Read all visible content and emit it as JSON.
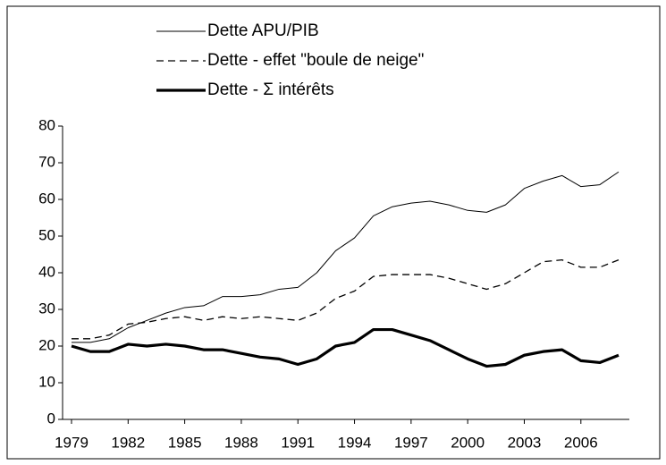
{
  "chart_data": {
    "type": "line",
    "x": [
      1979,
      1980,
      1981,
      1982,
      1983,
      1984,
      1985,
      1986,
      1987,
      1988,
      1989,
      1990,
      1991,
      1992,
      1993,
      1994,
      1995,
      1996,
      1997,
      1998,
      1999,
      2000,
      2001,
      2002,
      2003,
      2004,
      2005,
      2006,
      2007,
      2008
    ],
    "xlim": [
      1979,
      2008
    ],
    "xticks": [
      1979,
      1982,
      1985,
      1988,
      1991,
      1994,
      1997,
      2000,
      2003,
      2006
    ],
    "ylim": [
      0,
      80
    ],
    "yticks": [
      0,
      10,
      20,
      30,
      40,
      50,
      60,
      70,
      80
    ],
    "series": [
      {
        "name": "Dette APU/PIB",
        "color": "#000000",
        "line_width": 1,
        "dashed": false,
        "values": [
          21,
          21,
          22,
          25,
          27,
          29,
          30.5,
          31,
          33.5,
          33.5,
          34,
          35.5,
          36,
          40,
          46,
          49.5,
          55.5,
          58,
          59,
          59.5,
          58.5,
          57,
          56.5,
          58.5,
          63,
          65,
          66.5,
          63.5,
          64,
          67.5
        ]
      },
      {
        "name": "Dette - effet \"boule de neige\"",
        "color": "#000000",
        "line_width": 1.3,
        "dashed": true,
        "values": [
          22,
          22,
          23,
          26,
          26.5,
          27.5,
          28,
          27,
          28,
          27.5,
          28,
          27.5,
          27,
          29,
          33,
          35,
          39,
          39.5,
          39.5,
          39.5,
          38.5,
          37,
          35.5,
          37,
          40,
          43,
          43.5,
          41.5,
          41.5,
          43.5
        ]
      },
      {
        "name": "Dette - Σ intérêts",
        "color": "#000000",
        "line_width": 3.2,
        "dashed": false,
        "values": [
          20,
          18.5,
          18.5,
          20.5,
          20,
          20.5,
          20,
          19,
          19,
          18,
          17,
          16.5,
          15,
          16.5,
          20,
          21,
          24.5,
          24.5,
          23,
          21.5,
          19,
          16.5,
          14.5,
          15,
          17.5,
          18.5,
          19,
          16,
          15.5,
          17.5
        ]
      }
    ]
  }
}
